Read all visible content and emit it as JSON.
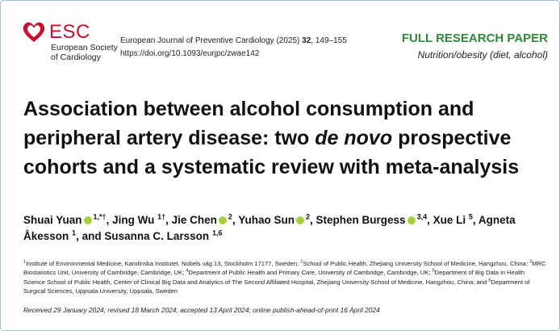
{
  "header": {
    "logo_text": "ESC",
    "society": [
      "European Society",
      "of Cardiology"
    ],
    "journal": "European Journal of Preventive Cardiology (2025)",
    "volume": "32",
    "pages": ", 149–155",
    "doi": "https://doi.org/10.1093/eurjpc/zwae142",
    "article_type": "FULL RESEARCH PAPER",
    "topic": "Nutrition/obesity (diet, alcohol)"
  },
  "title": {
    "before": "Association between alcohol consumption and peripheral artery disease: two",
    "italic": "de novo",
    "after": "prospective cohorts and a systematic review with meta-analysis"
  },
  "authors": {
    "separator": ",",
    "conjunction": "and",
    "list": [
      {
        "name": "Shuai Yuan",
        "affil": "1,*†"
      },
      {
        "name": "Jing Wu",
        "affil": "1†"
      },
      {
        "name": "Jie Chen",
        "affil": "2"
      },
      {
        "name": "Yuhao Sun",
        "affil": "2"
      },
      {
        "name": "Stephen Burgess",
        "affil": "3,4"
      },
      {
        "name": "Xue Li",
        "affil": "5"
      },
      {
        "name": "Agneta Åkesson",
        "affil": "1"
      },
      {
        "name": "Susanna C. Larsson",
        "affil": "1,6"
      }
    ]
  },
  "affiliations": [
    {
      "num": "1",
      "text": "Institute of Environmental Medicine, Karolinska Institutet, Nobels väg 13, Stockholm 17177, Sweden;"
    },
    {
      "num": "2",
      "text": "School of Public Health, Zhejiang University School of Medicine, Hangzhou, China;"
    },
    {
      "num": "3",
      "text": "MRC Biostatistics Unit, University of Cambridge, Cambridge, UK;"
    },
    {
      "num": "4",
      "text": "Department of Public Health and Primary Care, University of Cambridge, Cambridge, UK;"
    },
    {
      "num": "5",
      "text": "Department of Big Data in Health Science School of Public Health, Center of Clinical Big Data and Analytics of The Second Affiliated Hospital, Zhejiang University School of Medicine, Hangzhou, China; and"
    },
    {
      "num": "6",
      "text": "Department of Surgical Sciences, Uppsala University, Uppsala, Sweden"
    }
  ],
  "dates": "Received 29 January 2024; revised 18 March 2024; accepted 13 April 2024; online publish-ahead-of-print 16 April 2024"
}
